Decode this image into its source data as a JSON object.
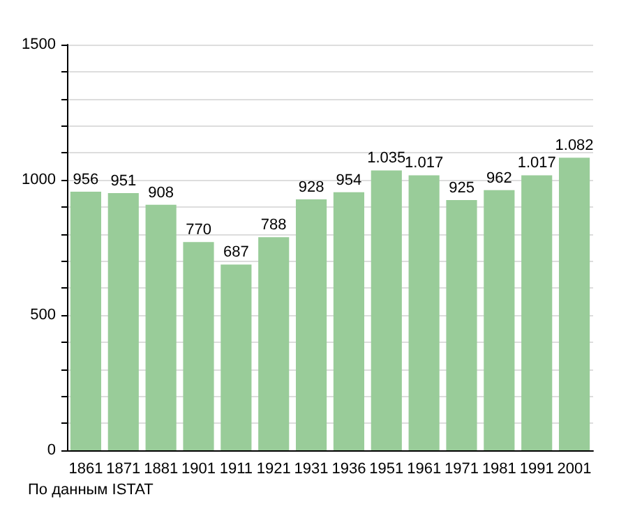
{
  "chart_data": {
    "type": "bar",
    "categories": [
      "1861",
      "1871",
      "1881",
      "1901",
      "1911",
      "1921",
      "1931",
      "1936",
      "1951",
      "1961",
      "1971",
      "1981",
      "1991",
      "2001"
    ],
    "values": [
      956,
      951,
      908,
      770,
      687,
      788,
      928,
      954,
      1035,
      1017,
      925,
      962,
      1017,
      1082
    ],
    "value_labels": [
      "956",
      "951",
      "908",
      "770",
      "687",
      "788",
      "928",
      "954",
      "1.035",
      "1.017",
      "925",
      "962",
      "1.017",
      "1.082"
    ],
    "color": "#99cc99",
    "ylim": [
      0,
      1500
    ],
    "yticks": [
      0,
      {
        "value": 100,
        "label": null
      },
      {
        "value": 200,
        "label": null
      },
      {
        "value": 300,
        "label": null
      },
      {
        "value": 400,
        "label": null
      },
      500,
      {
        "value": 600,
        "label": null
      },
      {
        "value": 700,
        "label": null
      },
      {
        "value": 800,
        "label": null
      },
      {
        "value": 900,
        "label": null
      },
      1000,
      {
        "value": 1100,
        "label": null
      },
      {
        "value": 1200,
        "label": null
      },
      {
        "value": 1300,
        "label": null
      },
      {
        "value": 1400,
        "label": null
      },
      1500
    ],
    "grid": "y",
    "annotations": [
      "По данным ISTAT"
    ]
  }
}
